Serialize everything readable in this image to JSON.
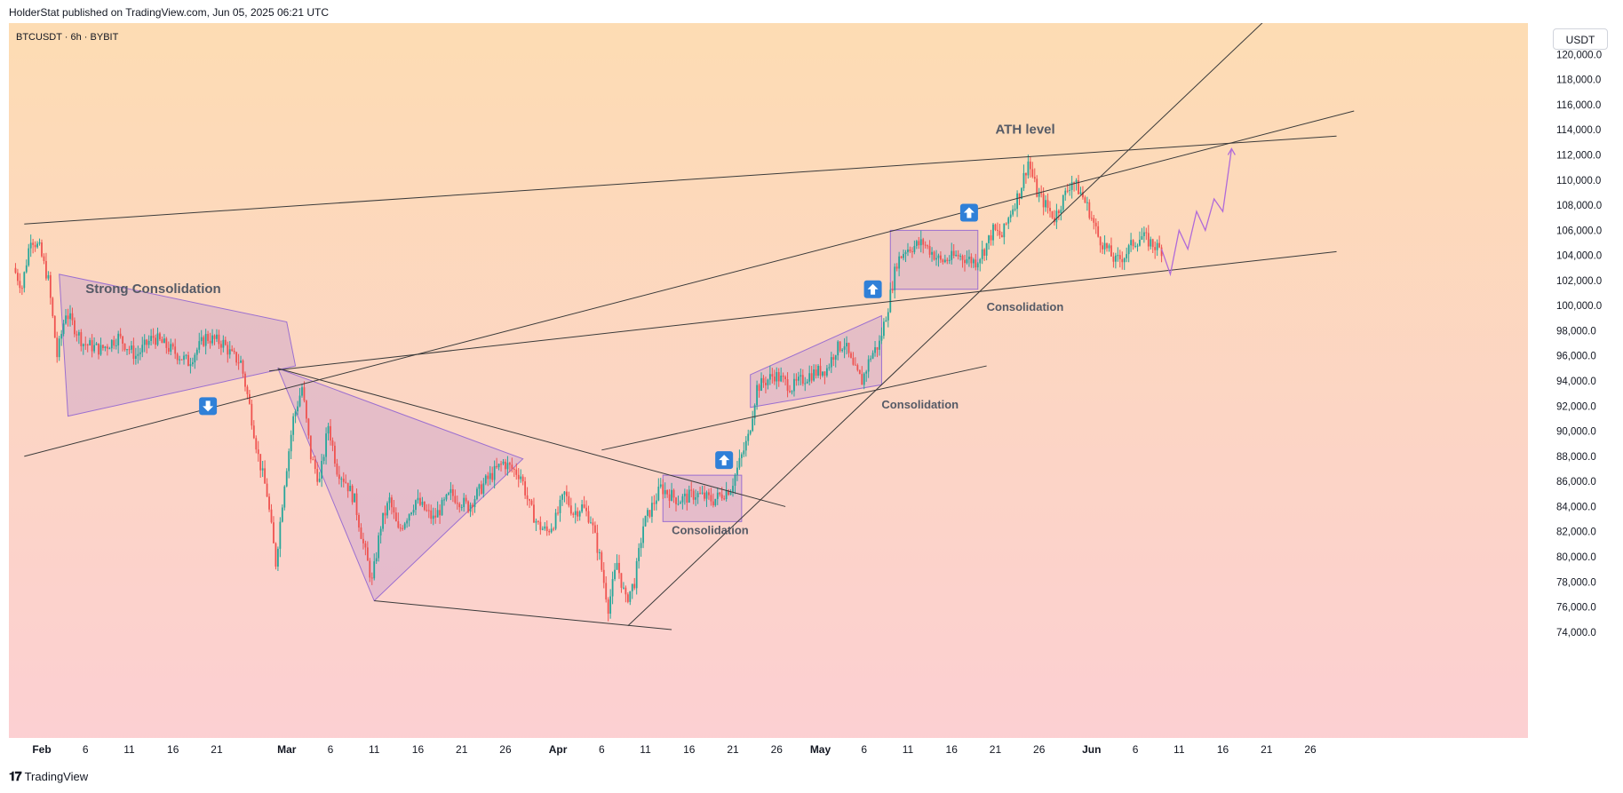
{
  "header": {
    "published": "HolderStat published on TradingView.com, Jun 05, 2025 06:21 UTC"
  },
  "symbol": {
    "label": "BTCUSDT · 6h · BYBIT"
  },
  "currency_button": "USDT",
  "footer": {
    "brand": "TradingView"
  },
  "colors": {
    "up": "#26a69a",
    "down": "#ef5350",
    "pattern_fill": "#b48ccf",
    "pattern_stroke": "#9b6fd0",
    "arrow_box": "#2f80d8",
    "line": "#3a3a3a"
  },
  "chart_data": {
    "type": "candlestick",
    "title": "",
    "xlabel": "",
    "ylabel": "",
    "ylim": [
      73000,
      122500
    ],
    "y_ticks": [
      74000,
      76000,
      78000,
      80000,
      82000,
      84000,
      86000,
      88000,
      90000,
      92000,
      94000,
      96000,
      98000,
      100000,
      102000,
      104000,
      106000,
      108000,
      110000,
      112000,
      114000,
      116000,
      118000,
      120000
    ],
    "y_tick_labels": [
      "74,000.0",
      "76,000.0",
      "78,000.0",
      "80,000.0",
      "82,000.0",
      "84,000.0",
      "86,000.0",
      "88,000.0",
      "90,000.0",
      "92,000.0",
      "94,000.0",
      "96,000.0",
      "98,000.0",
      "100,000.0",
      "102,000.0",
      "104,000.0",
      "106,000.0",
      "108,000.0",
      "110,000.0",
      "112,000.0",
      "114,000.0",
      "116,000.0",
      "118,000.0",
      "120,000.0"
    ],
    "x_ticks": [
      {
        "label": "Feb",
        "day": 0
      },
      {
        "label": "6",
        "day": 5
      },
      {
        "label": "11",
        "day": 10
      },
      {
        "label": "16",
        "day": 15
      },
      {
        "label": "21",
        "day": 20
      },
      {
        "label": "Mar",
        "day": 28
      },
      {
        "label": "6",
        "day": 33
      },
      {
        "label": "11",
        "day": 38
      },
      {
        "label": "16",
        "day": 43
      },
      {
        "label": "21",
        "day": 48
      },
      {
        "label": "26",
        "day": 53
      },
      {
        "label": "Apr",
        "day": 59
      },
      {
        "label": "6",
        "day": 64
      },
      {
        "label": "11",
        "day": 69
      },
      {
        "label": "16",
        "day": 74
      },
      {
        "label": "21",
        "day": 79
      },
      {
        "label": "26",
        "day": 84
      },
      {
        "label": "May",
        "day": 89
      },
      {
        "label": "6",
        "day": 94
      },
      {
        "label": "11",
        "day": 99
      },
      {
        "label": "16",
        "day": 104
      },
      {
        "label": "21",
        "day": 109
      },
      {
        "label": "26",
        "day": 114
      },
      {
        "label": "Jun",
        "day": 120
      },
      {
        "label": "6",
        "day": 125
      },
      {
        "label": "11",
        "day": 130
      },
      {
        "label": "16",
        "day": 135
      },
      {
        "label": "21",
        "day": 140
      },
      {
        "label": "26",
        "day": 145
      }
    ],
    "price_path": [
      [
        -3,
        103000
      ],
      [
        -2,
        101500
      ],
      [
        -1,
        105500
      ],
      [
        0,
        104500
      ],
      [
        1,
        102000
      ],
      [
        2,
        96000
      ],
      [
        3,
        99500
      ],
      [
        5,
        97000
      ],
      [
        7,
        96500
      ],
      [
        9,
        97500
      ],
      [
        11,
        96000
      ],
      [
        13,
        97500
      ],
      [
        15,
        96500
      ],
      [
        17,
        95500
      ],
      [
        19,
        97500
      ],
      [
        21,
        97000
      ],
      [
        22,
        96000
      ],
      [
        23,
        95500
      ],
      [
        24,
        92000
      ],
      [
        25,
        88000
      ],
      [
        26,
        85000
      ],
      [
        27,
        79500
      ],
      [
        28,
        86000
      ],
      [
        29,
        91000
      ],
      [
        30,
        93500
      ],
      [
        31,
        88000
      ],
      [
        32,
        86000
      ],
      [
        33,
        90500
      ],
      [
        34,
        87000
      ],
      [
        35,
        86000
      ],
      [
        36,
        84500
      ],
      [
        37,
        81000
      ],
      [
        38,
        78000
      ],
      [
        39,
        82500
      ],
      [
        40,
        84500
      ],
      [
        41,
        82000
      ],
      [
        43,
        84500
      ],
      [
        45,
        83000
      ],
      [
        47,
        85000
      ],
      [
        49,
        84000
      ],
      [
        51,
        86000
      ],
      [
        53,
        87500
      ],
      [
        55,
        86500
      ],
      [
        56,
        84000
      ],
      [
        57,
        82500
      ],
      [
        58,
        82000
      ],
      [
        59,
        83000
      ],
      [
        60,
        85000
      ],
      [
        61,
        83500
      ],
      [
        62,
        84000
      ],
      [
        63,
        83000
      ],
      [
        64,
        80000
      ],
      [
        65,
        76000
      ],
      [
        66,
        79500
      ],
      [
        67,
        76500
      ],
      [
        68,
        78000
      ],
      [
        69,
        82500
      ],
      [
        70,
        84000
      ],
      [
        71,
        85500
      ],
      [
        73,
        84500
      ],
      [
        75,
        85000
      ],
      [
        77,
        84500
      ],
      [
        79,
        85500
      ],
      [
        80,
        87500
      ],
      [
        81,
        89500
      ],
      [
        82,
        93500
      ],
      [
        84,
        94500
      ],
      [
        86,
        93500
      ],
      [
        88,
        94500
      ],
      [
        90,
        95000
      ],
      [
        91,
        96500
      ],
      [
        92,
        97000
      ],
      [
        93,
        95000
      ],
      [
        94,
        94000
      ],
      [
        95,
        96000
      ],
      [
        96,
        97000
      ],
      [
        97,
        100000
      ],
      [
        98,
        103500
      ],
      [
        99,
        104500
      ],
      [
        101,
        105000
      ],
      [
        103,
        103500
      ],
      [
        105,
        104000
      ],
      [
        107,
        103500
      ],
      [
        108,
        104500
      ],
      [
        109,
        106000
      ],
      [
        110,
        105500
      ],
      [
        111,
        107500
      ],
      [
        112,
        109000
      ],
      [
        113,
        111500
      ],
      [
        114,
        109000
      ],
      [
        115,
        108000
      ],
      [
        116,
        107000
      ],
      [
        117,
        108500
      ],
      [
        118,
        110000
      ],
      [
        119,
        109000
      ],
      [
        120,
        107500
      ],
      [
        121,
        105500
      ],
      [
        122,
        104500
      ],
      [
        123,
        103500
      ],
      [
        124,
        104000
      ],
      [
        125,
        105000
      ],
      [
        126,
        105500
      ],
      [
        127,
        105000
      ],
      [
        128,
        104500
      ]
    ],
    "projection": [
      [
        128,
        104500
      ],
      [
        129,
        102500
      ],
      [
        130,
        106000
      ],
      [
        131,
        104500
      ],
      [
        132,
        107500
      ],
      [
        133,
        106000
      ],
      [
        134,
        108500
      ],
      [
        135,
        107500
      ],
      [
        136,
        112500
      ]
    ],
    "annotations": [
      {
        "text": "Strong Consolidation",
        "day": 5,
        "price": 101000
      },
      {
        "text": "Consolidation",
        "day": 72,
        "price": 81800
      },
      {
        "text": "Consolidation",
        "day": 96,
        "price": 91800
      },
      {
        "text": "Consolidation",
        "day": 108,
        "price": 99600
      },
      {
        "text": "ATH  level",
        "day": 109,
        "price": 113700
      }
    ],
    "arrows": [
      {
        "direction": "down",
        "day": 19,
        "price": 92000
      },
      {
        "direction": "up",
        "day": 78,
        "price": 87700
      },
      {
        "direction": "up",
        "day": 95,
        "price": 101300
      },
      {
        "direction": "up",
        "day": 106,
        "price": 107400
      }
    ],
    "trendlines": [
      {
        "from": [
          -2,
          106500
        ],
        "to": [
          148,
          113500
        ]
      },
      {
        "from": [
          -2,
          88000
        ],
        "to": [
          150,
          115500
        ]
      },
      {
        "from": [
          26,
          94800
        ],
        "to": [
          148,
          104300
        ]
      },
      {
        "from": [
          27,
          95000
        ],
        "to": [
          85,
          84000
        ]
      },
      {
        "from": [
          38,
          76500
        ],
        "to": [
          72,
          74200
        ]
      },
      {
        "from": [
          64,
          88500
        ],
        "to": [
          108,
          95200
        ]
      },
      {
        "from": [
          67,
          74500
        ],
        "to": [
          141,
          123500
        ]
      }
    ],
    "patterns": [
      {
        "kind": "triangle",
        "points": [
          [
            2,
            102500
          ],
          [
            28,
            98700
          ],
          [
            29,
            95200
          ],
          [
            3,
            91200
          ]
        ]
      },
      {
        "kind": "triangle",
        "points": [
          [
            27,
            95000
          ],
          [
            55,
            87800
          ],
          [
            38,
            76500
          ]
        ]
      },
      {
        "kind": "rectangle",
        "points": [
          [
            71,
            86500
          ],
          [
            80,
            86500
          ],
          [
            80,
            82800
          ],
          [
            71,
            82800
          ]
        ]
      },
      {
        "kind": "channel",
        "points": [
          [
            81,
            94500
          ],
          [
            96,
            99200
          ],
          [
            96,
            93700
          ],
          [
            81,
            91900
          ]
        ]
      },
      {
        "kind": "rectangle",
        "points": [
          [
            97,
            106000
          ],
          [
            107,
            106000
          ],
          [
            107,
            101300
          ],
          [
            97,
            101300
          ]
        ]
      }
    ]
  }
}
